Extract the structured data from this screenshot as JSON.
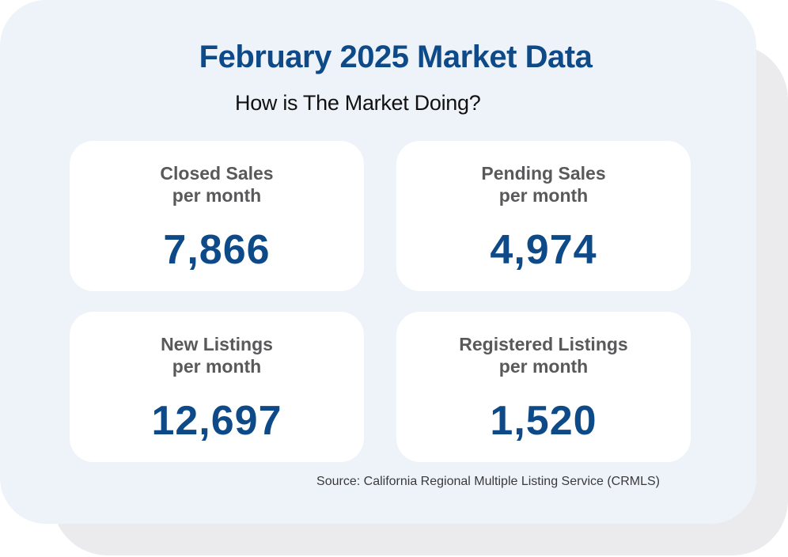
{
  "header": {
    "title": "February 2025 Market Data",
    "subtitle": "How is The Market Doing?"
  },
  "stats": [
    {
      "label_line1": "Closed Sales",
      "label_line2": "per month",
      "value": "7,866"
    },
    {
      "label_line1": "Pending Sales",
      "label_line2": "per month",
      "value": "4,974"
    },
    {
      "label_line1": "New Listings",
      "label_line2": "per month",
      "value": "12,697"
    },
    {
      "label_line1": "Registered Listings",
      "label_line2": "per month",
      "value": "1,520"
    }
  ],
  "footer": {
    "source": "Source: California Regional Multiple Listing Service (CRMLS)"
  },
  "colors": {
    "accent": "#0d4a87",
    "card_background": "#eef3fa",
    "shadow": "#ebebed",
    "label": "#59595b"
  }
}
